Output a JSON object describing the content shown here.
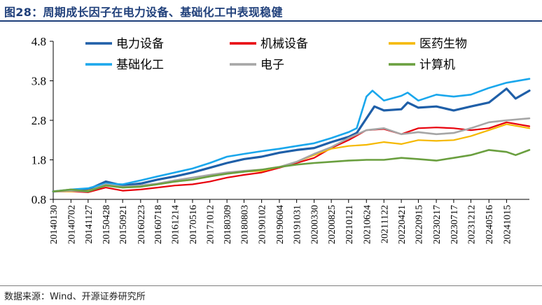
{
  "header": {
    "title": "图28：周期成长因子在电力设备、基础化工中表现稳健"
  },
  "footer": {
    "source": "数据来源：Wind、开源证券研究所"
  },
  "chart_data": {
    "type": "line",
    "title": "图28：周期成长因子在电力设备、基础化工中表现稳健",
    "xlabel": "",
    "ylabel": "",
    "ylim": [
      0.8,
      4.8
    ],
    "yticks": [
      0.8,
      1.8,
      2.8,
      3.8,
      4.8
    ],
    "legend": "top",
    "grid": false,
    "x_ticks": [
      "20140130",
      "20140702",
      "20141127",
      "20150428",
      "20150921",
      "20160223",
      "20160718",
      "20161214",
      "20170516",
      "20171012",
      "20180309",
      "20180803",
      "20190102",
      "20190604",
      "20191031",
      "20200330",
      "20200825",
      "20210121",
      "20210624",
      "20211122",
      "20220421",
      "20220915",
      "20230217",
      "20230717",
      "20231212",
      "20240516",
      "20241015"
    ],
    "x_range": [
      "2014-01-30",
      "2025-04-30"
    ],
    "series": [
      {
        "name": "电力设备",
        "color": "#1f5fa8",
        "width": 3.2,
        "points": [
          [
            "2014-01-30",
            1.0
          ],
          [
            "2014-07-02",
            1.02
          ],
          [
            "2014-11-27",
            1.05
          ],
          [
            "2015-04-28",
            1.25
          ],
          [
            "2015-09-21",
            1.15
          ],
          [
            "2016-02-23",
            1.2
          ],
          [
            "2016-07-18",
            1.3
          ],
          [
            "2016-12-14",
            1.38
          ],
          [
            "2017-05-16",
            1.48
          ],
          [
            "2017-10-12",
            1.6
          ],
          [
            "2018-03-09",
            1.72
          ],
          [
            "2018-08-03",
            1.82
          ],
          [
            "2019-01-02",
            1.88
          ],
          [
            "2019-06-04",
            1.98
          ],
          [
            "2019-10-31",
            2.05
          ],
          [
            "2020-03-30",
            2.1
          ],
          [
            "2020-08-25",
            2.25
          ],
          [
            "2021-01-21",
            2.38
          ],
          [
            "2021-04-01",
            2.48
          ],
          [
            "2021-06-24",
            2.85
          ],
          [
            "2021-09-01",
            3.15
          ],
          [
            "2021-11-22",
            3.05
          ],
          [
            "2022-04-21",
            3.08
          ],
          [
            "2022-06-15",
            3.25
          ],
          [
            "2022-09-15",
            3.12
          ],
          [
            "2023-02-17",
            3.15
          ],
          [
            "2023-07-17",
            3.05
          ],
          [
            "2023-12-12",
            3.15
          ],
          [
            "2024-05-16",
            3.25
          ],
          [
            "2024-10-15",
            3.6
          ],
          [
            "2025-01-01",
            3.35
          ],
          [
            "2025-04-30",
            3.55
          ]
        ]
      },
      {
        "name": "机械设备",
        "color": "#e8000b",
        "width": 2.2,
        "points": [
          [
            "2014-01-30",
            1.0
          ],
          [
            "2014-07-02",
            1.0
          ],
          [
            "2014-11-27",
            0.98
          ],
          [
            "2015-04-28",
            1.1
          ],
          [
            "2015-09-21",
            1.02
          ],
          [
            "2016-02-23",
            1.05
          ],
          [
            "2016-07-18",
            1.1
          ],
          [
            "2016-12-14",
            1.15
          ],
          [
            "2017-05-16",
            1.18
          ],
          [
            "2017-10-12",
            1.25
          ],
          [
            "2018-03-09",
            1.35
          ],
          [
            "2018-08-03",
            1.42
          ],
          [
            "2019-01-02",
            1.48
          ],
          [
            "2019-06-04",
            1.6
          ],
          [
            "2019-10-31",
            1.72
          ],
          [
            "2020-03-30",
            1.85
          ],
          [
            "2020-08-25",
            2.1
          ],
          [
            "2021-01-21",
            2.3
          ],
          [
            "2021-06-24",
            2.55
          ],
          [
            "2021-11-22",
            2.58
          ],
          [
            "2022-04-21",
            2.45
          ],
          [
            "2022-09-15",
            2.6
          ],
          [
            "2023-02-17",
            2.62
          ],
          [
            "2023-07-17",
            2.6
          ],
          [
            "2023-12-12",
            2.55
          ],
          [
            "2024-05-16",
            2.6
          ],
          [
            "2024-10-15",
            2.75
          ],
          [
            "2025-04-30",
            2.65
          ]
        ]
      },
      {
        "name": "医药生物",
        "color": "#f5b800",
        "width": 2.2,
        "points": [
          [
            "2014-01-30",
            1.0
          ],
          [
            "2014-07-02",
            1.0
          ],
          [
            "2014-11-27",
            1.02
          ],
          [
            "2015-04-28",
            1.15
          ],
          [
            "2015-09-21",
            1.1
          ],
          [
            "2016-02-23",
            1.12
          ],
          [
            "2016-07-18",
            1.18
          ],
          [
            "2016-12-14",
            1.25
          ],
          [
            "2017-05-16",
            1.3
          ],
          [
            "2017-10-12",
            1.38
          ],
          [
            "2018-03-09",
            1.45
          ],
          [
            "2018-08-03",
            1.5
          ],
          [
            "2019-01-02",
            1.52
          ],
          [
            "2019-06-04",
            1.62
          ],
          [
            "2019-10-31",
            1.75
          ],
          [
            "2020-03-30",
            1.92
          ],
          [
            "2020-08-25",
            2.08
          ],
          [
            "2021-01-21",
            2.15
          ],
          [
            "2021-06-24",
            2.18
          ],
          [
            "2021-11-22",
            2.25
          ],
          [
            "2022-04-21",
            2.2
          ],
          [
            "2022-09-15",
            2.3
          ],
          [
            "2023-02-17",
            2.28
          ],
          [
            "2023-07-17",
            2.3
          ],
          [
            "2023-12-12",
            2.4
          ],
          [
            "2024-05-16",
            2.55
          ],
          [
            "2024-10-15",
            2.7
          ],
          [
            "2025-04-30",
            2.6
          ]
        ]
      },
      {
        "name": "基础化工",
        "color": "#1aa7ec",
        "width": 2.6,
        "points": [
          [
            "2014-01-30",
            1.0
          ],
          [
            "2014-07-02",
            1.05
          ],
          [
            "2014-11-27",
            1.08
          ],
          [
            "2015-04-28",
            1.2
          ],
          [
            "2015-09-21",
            1.18
          ],
          [
            "2016-02-23",
            1.28
          ],
          [
            "2016-07-18",
            1.38
          ],
          [
            "2016-12-14",
            1.48
          ],
          [
            "2017-05-16",
            1.58
          ],
          [
            "2017-10-12",
            1.72
          ],
          [
            "2018-03-09",
            1.88
          ],
          [
            "2018-08-03",
            1.95
          ],
          [
            "2019-01-02",
            2.02
          ],
          [
            "2019-06-04",
            2.08
          ],
          [
            "2019-10-31",
            2.15
          ],
          [
            "2020-03-30",
            2.22
          ],
          [
            "2020-08-25",
            2.35
          ],
          [
            "2021-01-21",
            2.5
          ],
          [
            "2021-04-01",
            2.6
          ],
          [
            "2021-06-24",
            3.4
          ],
          [
            "2021-08-15",
            3.55
          ],
          [
            "2021-11-22",
            3.3
          ],
          [
            "2022-04-21",
            3.42
          ],
          [
            "2022-06-15",
            3.5
          ],
          [
            "2022-09-15",
            3.3
          ],
          [
            "2023-02-17",
            3.45
          ],
          [
            "2023-07-17",
            3.4
          ],
          [
            "2023-12-12",
            3.45
          ],
          [
            "2024-05-16",
            3.62
          ],
          [
            "2024-10-15",
            3.75
          ],
          [
            "2025-04-30",
            3.85
          ]
        ]
      },
      {
        "name": "电子",
        "color": "#a6a6a6",
        "width": 2.6,
        "points": [
          [
            "2014-01-30",
            1.0
          ],
          [
            "2014-07-02",
            1.02
          ],
          [
            "2014-11-27",
            1.0
          ],
          [
            "2015-04-28",
            1.18
          ],
          [
            "2015-09-21",
            1.12
          ],
          [
            "2016-02-23",
            1.15
          ],
          [
            "2016-07-18",
            1.2
          ],
          [
            "2016-12-14",
            1.28
          ],
          [
            "2017-05-16",
            1.35
          ],
          [
            "2017-10-12",
            1.42
          ],
          [
            "2018-03-09",
            1.48
          ],
          [
            "2018-08-03",
            1.52
          ],
          [
            "2019-01-02",
            1.55
          ],
          [
            "2019-06-04",
            1.62
          ],
          [
            "2019-10-31",
            1.75
          ],
          [
            "2020-03-30",
            1.95
          ],
          [
            "2020-08-25",
            2.12
          ],
          [
            "2021-01-21",
            2.35
          ],
          [
            "2021-06-24",
            2.55
          ],
          [
            "2021-11-22",
            2.6
          ],
          [
            "2022-04-21",
            2.45
          ],
          [
            "2022-09-15",
            2.5
          ],
          [
            "2023-02-17",
            2.45
          ],
          [
            "2023-07-17",
            2.48
          ],
          [
            "2023-12-12",
            2.6
          ],
          [
            "2024-05-16",
            2.75
          ],
          [
            "2024-10-15",
            2.8
          ],
          [
            "2025-04-30",
            2.85
          ]
        ]
      },
      {
        "name": "计算机",
        "color": "#6a9f3f",
        "width": 2.6,
        "points": [
          [
            "2014-01-30",
            1.0
          ],
          [
            "2014-07-02",
            1.05
          ],
          [
            "2014-11-27",
            1.0
          ],
          [
            "2015-04-28",
            1.15
          ],
          [
            "2015-09-21",
            1.1
          ],
          [
            "2016-02-23",
            1.12
          ],
          [
            "2016-07-18",
            1.18
          ],
          [
            "2016-12-14",
            1.25
          ],
          [
            "2017-05-16",
            1.3
          ],
          [
            "2017-10-12",
            1.38
          ],
          [
            "2018-03-09",
            1.45
          ],
          [
            "2018-08-03",
            1.5
          ],
          [
            "2019-01-02",
            1.55
          ],
          [
            "2019-06-04",
            1.62
          ],
          [
            "2019-10-31",
            1.68
          ],
          [
            "2020-03-30",
            1.72
          ],
          [
            "2020-08-25",
            1.75
          ],
          [
            "2021-01-21",
            1.78
          ],
          [
            "2021-06-24",
            1.8
          ],
          [
            "2021-11-22",
            1.8
          ],
          [
            "2022-04-21",
            1.85
          ],
          [
            "2022-09-15",
            1.82
          ],
          [
            "2023-02-17",
            1.78
          ],
          [
            "2023-07-17",
            1.85
          ],
          [
            "2023-12-12",
            1.92
          ],
          [
            "2024-05-16",
            2.05
          ],
          [
            "2024-10-15",
            2.0
          ],
          [
            "2025-01-01",
            1.92
          ],
          [
            "2025-04-30",
            2.05
          ]
        ]
      }
    ]
  }
}
